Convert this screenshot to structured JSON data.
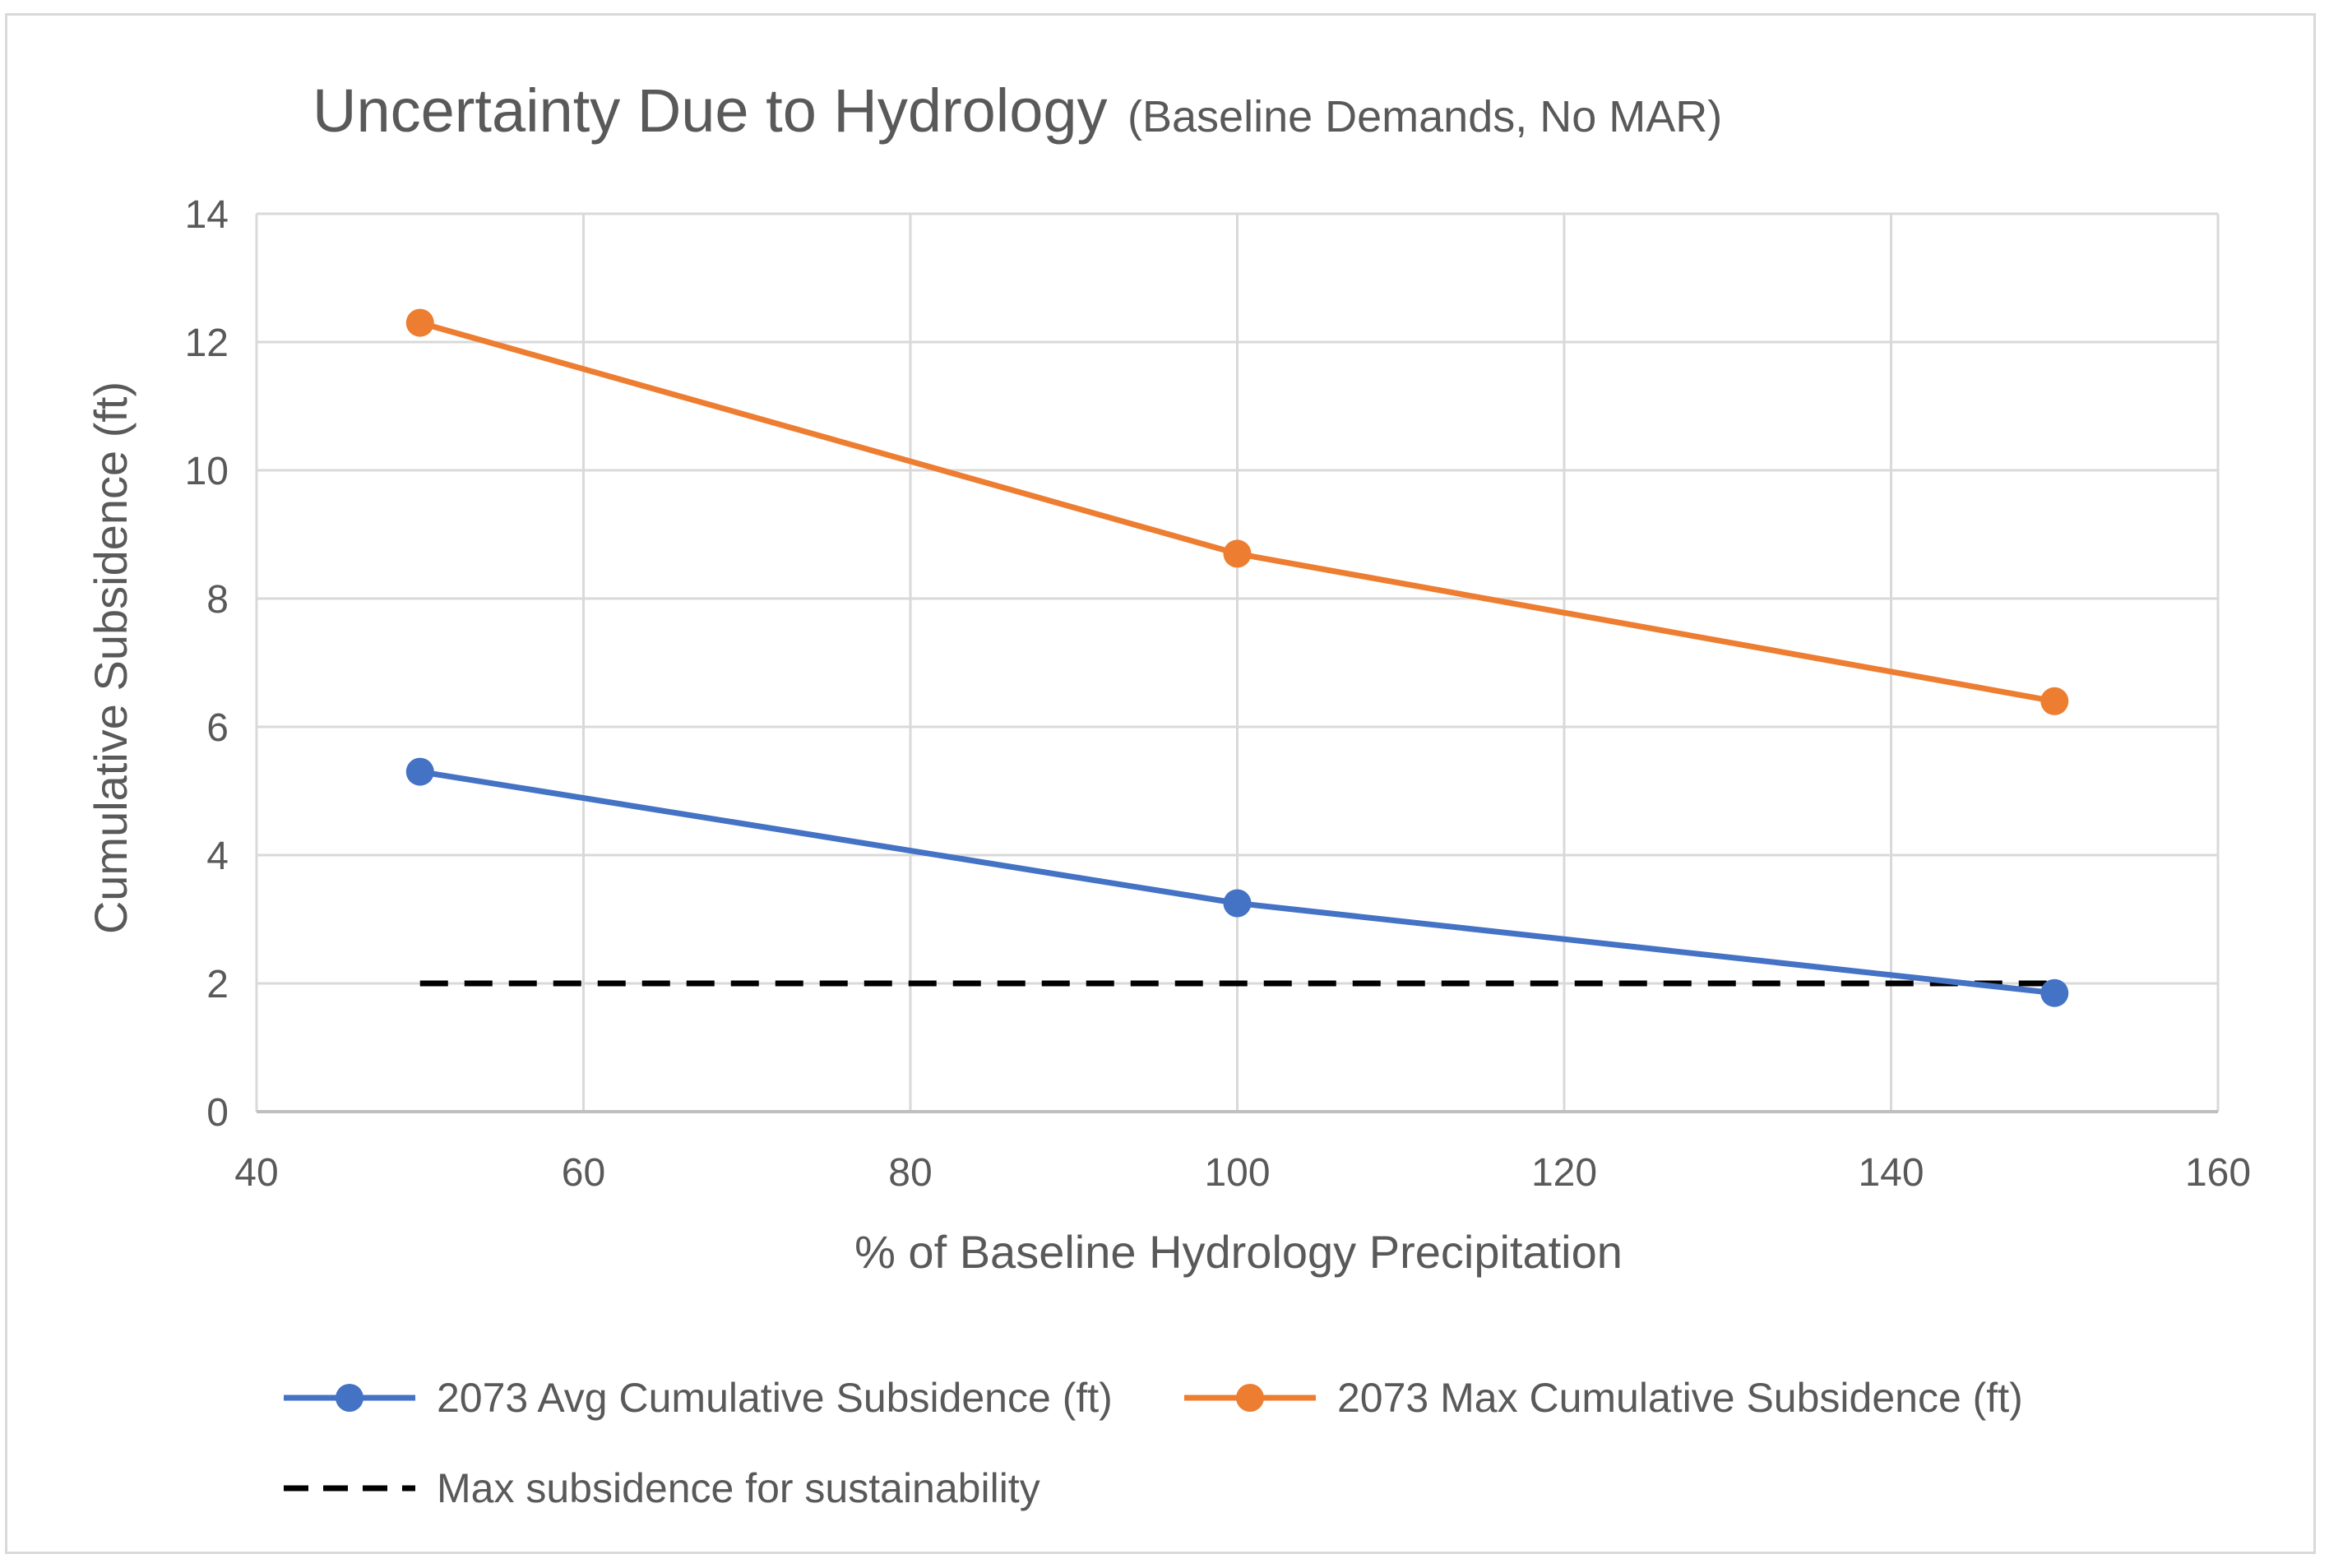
{
  "chart_data": {
    "type": "line",
    "title": "Uncertainty Due to Hydrology",
    "subtitle": "(Baseline Demands, No MAR)",
    "xlabel": "% of Baseline Hydrology Precipitation",
    "ylabel": "Cumulative Subsidence (ft)",
    "xlim": [
      40,
      160
    ],
    "ylim": [
      0,
      14
    ],
    "xticks": [
      40,
      60,
      80,
      100,
      120,
      140,
      160
    ],
    "yticks": [
      0,
      2,
      4,
      6,
      8,
      10,
      12,
      14
    ],
    "grid": true,
    "legend_position": "bottom",
    "series": [
      {
        "name": "2073 Avg Cumulative Subsidence (ft)",
        "color": "#4472c4",
        "style": "solid-marker",
        "x": [
          50,
          100,
          150
        ],
        "y": [
          5.3,
          3.25,
          1.85
        ]
      },
      {
        "name": "2073 Max Cumulative Subsidence (ft)",
        "color": "#ed7d31",
        "style": "solid-marker",
        "x": [
          50,
          100,
          150
        ],
        "y": [
          12.3,
          8.7,
          6.4
        ]
      },
      {
        "name": "Max subsidence for sustainability",
        "color": "#000000",
        "style": "dashed",
        "x": [
          50,
          150
        ],
        "y": [
          2,
          2
        ]
      }
    ]
  }
}
